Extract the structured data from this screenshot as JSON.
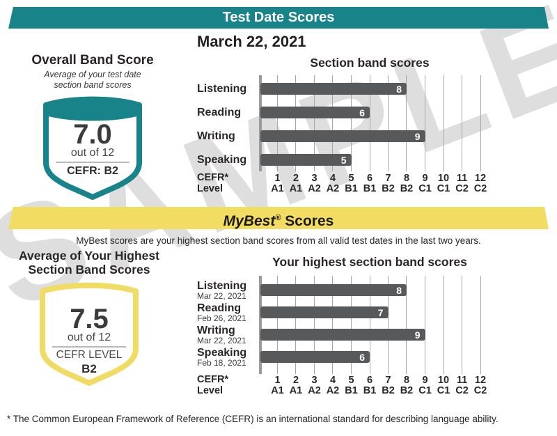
{
  "colors": {
    "teal": "#19838a",
    "yellow": "#f2dc62",
    "bar_gray": "#58595b",
    "watermark_gray": "#dedede"
  },
  "banners": {
    "test_date": "Test Date Scores"
  },
  "mybest_banner": {
    "name": "MyBest",
    "reg": "®",
    "rest": " Scores"
  },
  "header": {
    "date": "March 22, 2021"
  },
  "overall": {
    "title": "Overall Band Score",
    "subtitle1": "Average of your test date",
    "subtitle2": "section band scores",
    "score": "7.0",
    "out_of": "out of 12",
    "cefr": "CEFR: B2"
  },
  "mybest": {
    "description": "MyBest scores are your highest section band scores from all valid test dates in the last two years.",
    "title1": "Average of Your Highest",
    "title2": "Section Band Scores",
    "score": "7.5",
    "out_of": "out of 12",
    "cefr_label": "CEFR LEVEL",
    "cefr_value": "B2"
  },
  "chart_data": [
    {
      "type": "bar",
      "orientation": "horizontal",
      "title": "Section band scores",
      "categories": [
        "Listening",
        "Reading",
        "Writing",
        "Speaking"
      ],
      "values": [
        8,
        6,
        9,
        5
      ],
      "xlim": [
        0,
        12
      ],
      "x_ticks": [
        1,
        2,
        3,
        4,
        5,
        6,
        7,
        8,
        9,
        10,
        11,
        12
      ],
      "x_tick_cefr": [
        "A1",
        "A1",
        "A2",
        "A2",
        "B1",
        "B1",
        "B2",
        "B2",
        "C1",
        "C1",
        "C2",
        "C2"
      ],
      "xlabel": "CEFR* Level",
      "grid": true,
      "value_labels": true,
      "bar_color": "#58595b"
    },
    {
      "type": "bar",
      "orientation": "horizontal",
      "title": "Your highest section band scores",
      "categories": [
        "Listening",
        "Reading",
        "Writing",
        "Speaking"
      ],
      "category_dates": [
        "Mar 22, 2021",
        "Feb 26, 2021",
        "Mar 22, 2021",
        "Feb 18, 2021"
      ],
      "values": [
        8,
        7,
        9,
        6
      ],
      "xlim": [
        0,
        12
      ],
      "x_ticks": [
        1,
        2,
        3,
        4,
        5,
        6,
        7,
        8,
        9,
        10,
        11,
        12
      ],
      "x_tick_cefr": [
        "A1",
        "A1",
        "A2",
        "A2",
        "B1",
        "B1",
        "B2",
        "B2",
        "C1",
        "C1",
        "C2",
        "C2"
      ],
      "xlabel": "CEFR* Level",
      "grid": true,
      "value_labels": true,
      "bar_color": "#58595b"
    }
  ],
  "footnote": {
    "text": "* The Common European Framework of Reference (CEFR) is an international standard for describing language ability."
  },
  "watermark": {
    "text": "SAMPLE"
  }
}
